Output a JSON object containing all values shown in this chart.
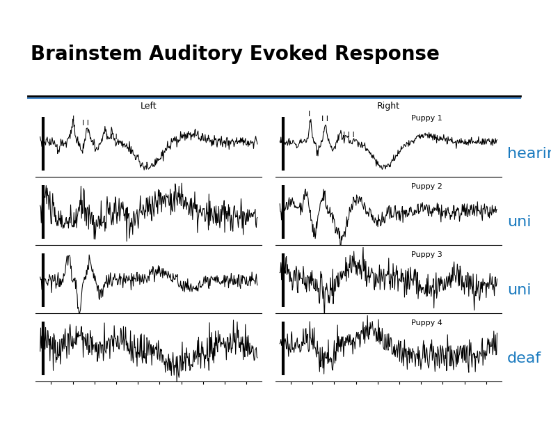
{
  "title": "Brainstem Auditory Evoked Response",
  "title_fontsize": 20,
  "title_fontweight": "bold",
  "title_color": "#000000",
  "background_color": "#ffffff",
  "underline_color_black": "#000000",
  "underline_color_blue": "#4488cc",
  "puppy_labels": [
    "Puppy 1",
    "Puppy 2",
    "Puppy 3",
    "Puppy 4"
  ],
  "side_labels": [
    "hearing",
    "uni",
    "uni",
    "deaf"
  ],
  "side_label_color": "#1a7abf",
  "side_label_fontsize": 16,
  "puppy_label_fontsize": 8,
  "header_fontsize": 9,
  "peak_label_fontsize": 8
}
